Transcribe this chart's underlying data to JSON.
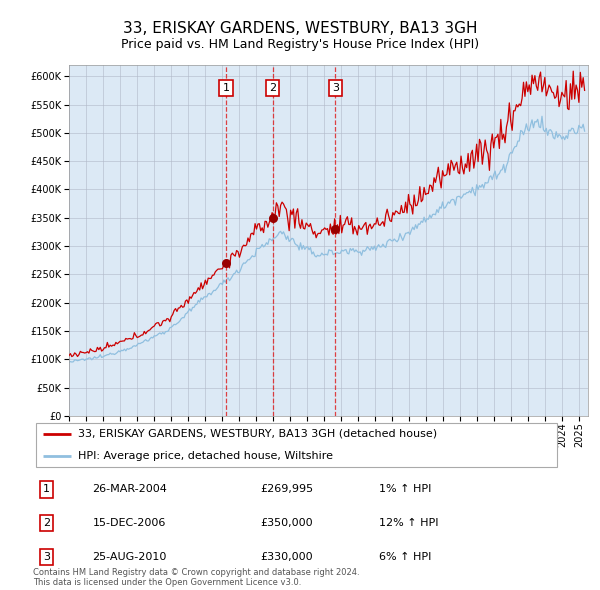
{
  "title": "33, ERISKAY GARDENS, WESTBURY, BA13 3GH",
  "subtitle": "Price paid vs. HM Land Registry's House Price Index (HPI)",
  "legend_property": "33, ERISKAY GARDENS, WESTBURY, BA13 3GH (detached house)",
  "legend_hpi": "HPI: Average price, detached house, Wiltshire",
  "footer1": "Contains HM Land Registry data © Crown copyright and database right 2024.",
  "footer2": "This data is licensed under the Open Government Licence v3.0.",
  "transactions": [
    {
      "num": 1,
      "date": "26-MAR-2004",
      "price": 269995,
      "hpi_pct": "1%",
      "direction": "↑"
    },
    {
      "num": 2,
      "date": "15-DEC-2006",
      "price": 350000,
      "hpi_pct": "12%",
      "direction": "↑"
    },
    {
      "num": 3,
      "date": "25-AUG-2010",
      "price": 330000,
      "hpi_pct": "6%",
      "direction": "↑"
    }
  ],
  "transaction_years": [
    2004.23,
    2006.96,
    2010.65
  ],
  "transaction_prices": [
    269995,
    350000,
    330000
  ],
  "ylim": [
    0,
    620000
  ],
  "yticks": [
    0,
    50000,
    100000,
    150000,
    200000,
    250000,
    300000,
    350000,
    400000,
    450000,
    500000,
    550000,
    600000
  ],
  "bg_color": "#dce9f5",
  "grid_color": "#b0b8c8",
  "line_color_property": "#cc0000",
  "line_color_hpi": "#90bfdf",
  "marker_color": "#990000",
  "vline_color": "#dd2222",
  "box_color": "#cc0000",
  "title_fontsize": 11,
  "subtitle_fontsize": 9,
  "tick_fontsize": 7,
  "legend_fontsize": 8,
  "table_fontsize": 8,
  "footer_fontsize": 6
}
